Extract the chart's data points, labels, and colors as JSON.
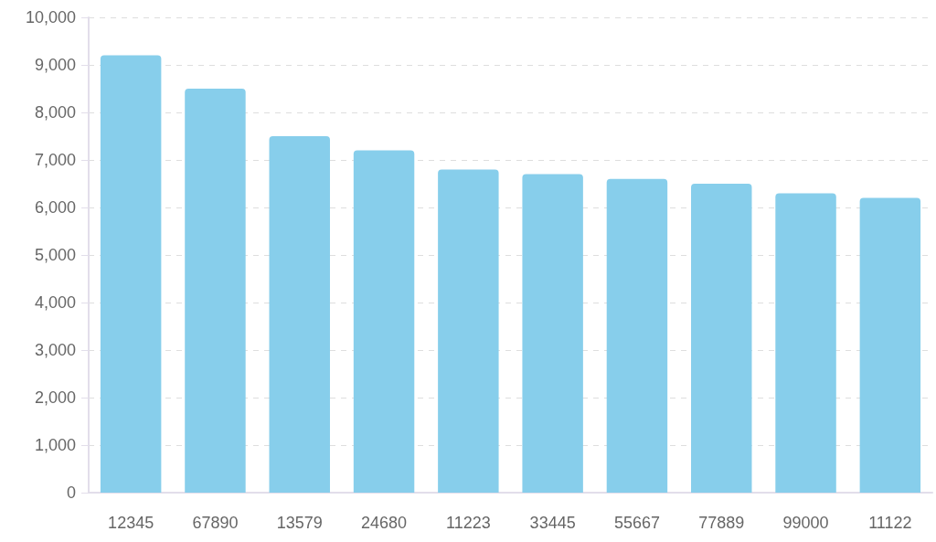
{
  "chart_data": {
    "type": "bar",
    "categories": [
      "12345",
      "67890",
      "13579",
      "24680",
      "11223",
      "33445",
      "55667",
      "77889",
      "99000",
      "11122"
    ],
    "values": [
      9200,
      8500,
      7500,
      7200,
      6800,
      6700,
      6600,
      6500,
      6300,
      6200
    ],
    "color": "#87ceeb",
    "ylim": [
      0,
      10000
    ],
    "yticks": [
      0,
      {
        "value": 1000,
        "label": "1,000"
      },
      {
        "value": 2000,
        "label": "2,000"
      },
      {
        "value": 3000,
        "label": "3,000"
      },
      {
        "value": 4000,
        "label": "4,000"
      },
      {
        "value": 5000,
        "label": "5,000"
      },
      {
        "value": 6000,
        "label": "6,000"
      },
      {
        "value": 7000,
        "label": "7,000"
      },
      {
        "value": 8000,
        "label": "8,000"
      },
      {
        "value": 9000,
        "label": "9,000"
      },
      {
        "value": 10000,
        "label": "10,000"
      }
    ],
    "grid": "y"
  }
}
